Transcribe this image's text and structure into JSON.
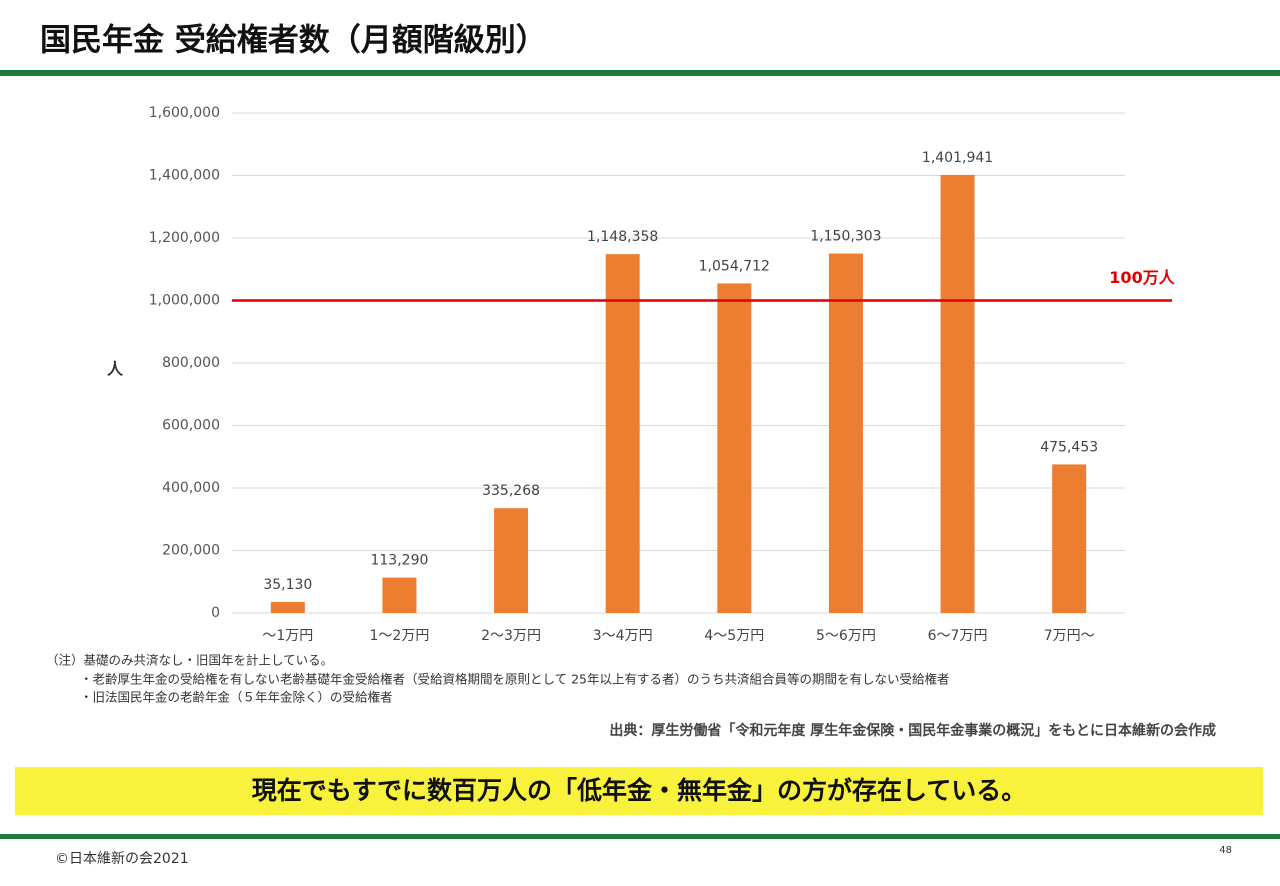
{
  "header": {
    "title": "国民年金 受給権者数（月額階級別）"
  },
  "chart_data": {
    "type": "bar",
    "y_label": "人",
    "categories": [
      "～1万円",
      "1～2万円",
      "2～3万円",
      "3～4万円",
      "4～5万円",
      "5～6万円",
      "6～7万円",
      "7万円～"
    ],
    "values": [
      35130,
      113290,
      335268,
      1148358,
      1054712,
      1150303,
      1401941,
      475453
    ],
    "value_labels": [
      "35,130",
      "113,290",
      "335,268",
      "1,148,358",
      "1,054,712",
      "1,150,303",
      "1,401,941",
      "475,453"
    ],
    "color": "#ed7d31",
    "ylim": [
      0,
      1600000
    ],
    "yticks": [
      0,
      {
        "value": 200000,
        "label": "200,000"
      },
      {
        "value": 400000,
        "label": "400,000"
      },
      {
        "value": 600000,
        "label": "600,000"
      },
      {
        "value": 800000,
        "label": "800,000"
      },
      {
        "value": 1000000,
        "label": "1,000,000"
      },
      {
        "value": 1200000,
        "label": "1,200,000"
      },
      {
        "value": 1400000,
        "label": "1,400,000"
      },
      {
        "value": 1600000,
        "label": "1,600,000"
      }
    ],
    "grid": true,
    "reference_line": {
      "value": 1000000,
      "label": "100万人",
      "color": "#e00000"
    }
  },
  "notes": [
    "（注）基礎のみ共済なし・旧国年を計上している。",
    "・老齢厚生年金の受給権を有しない老齢基礎年金受給権者（受給資格期間を原則として 25年以上有する者）のうち共済組合員等の期間を有しない受給権者",
    "・旧法国民年金の老齢年金（５年年金除く）の受給権者"
  ],
  "source": "出典：厚生労働省「令和元年度 厚生年金保険・国民年金事業の概況」をもとに日本維新の会作成",
  "banner": "現在でもすでに数百万人の「低年金・無年金」の方が存在している。",
  "footer": {
    "copyright": "©日本維新の会2021",
    "page": "48"
  }
}
